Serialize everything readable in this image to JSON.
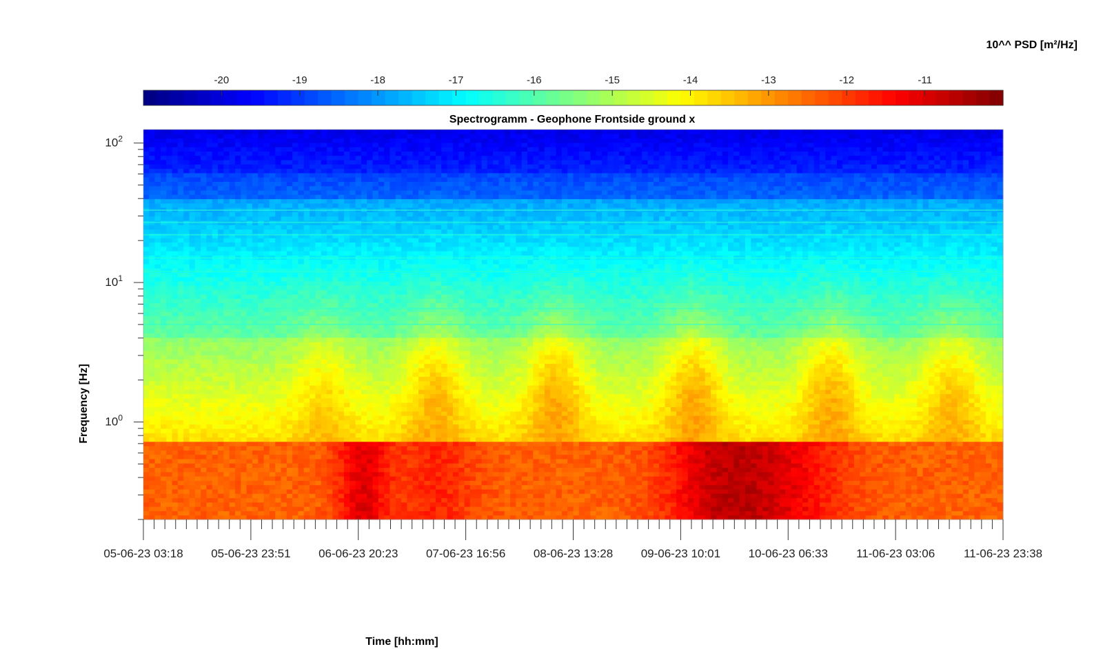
{
  "chart_data": {
    "type": "heatmap",
    "title": "Spectrogramm - Geophone Frontside ground x",
    "xlabel": "Time [hh:mm]",
    "ylabel": "Frequency [Hz]",
    "colorbar_label": "10^^ PSD [m²/Hz]",
    "colormap": "jet",
    "y_scale": "log",
    "y_range_hz": [
      0.2,
      125
    ],
    "y_ticks": [
      {
        "value": 100,
        "base": "10",
        "exp": "2"
      },
      {
        "value": 10,
        "base": "10",
        "exp": "1"
      },
      {
        "value": 1,
        "base": "10",
        "exp": "0"
      }
    ],
    "x_ticks": [
      "05-06-23 03:18",
      "05-06-23 23:51",
      "06-06-23 20:23",
      "07-06-23 16:56",
      "08-06-23 13:28",
      "09-06-23 10:01",
      "10-06-23 06:33",
      "11-06-23 03:06",
      "11-06-23 23:38"
    ],
    "colorbar_range": [
      -21,
      -10
    ],
    "colorbar_ticks": [
      "-20",
      "-19",
      "-18",
      "-17",
      "-16",
      "-15",
      "-14",
      "-13",
      "-12",
      "-11"
    ],
    "colors": {
      "low": "#00008f",
      "mid_low": "#0080ff",
      "mid": "#80ff80",
      "mid_high": "#ffff00",
      "high": "#ff4000",
      "max": "#800000"
    }
  }
}
